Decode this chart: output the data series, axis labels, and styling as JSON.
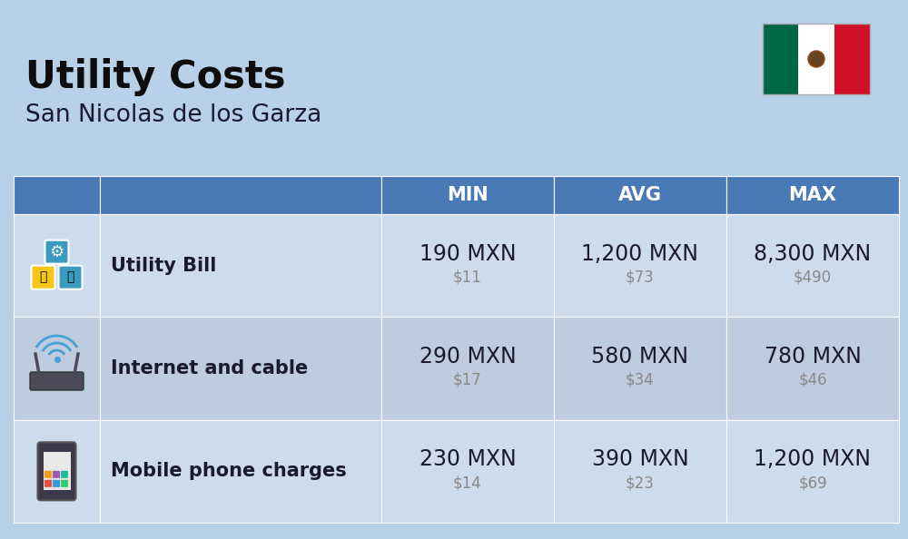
{
  "title": "Utility Costs",
  "subtitle": "San Nicolas de los Garza",
  "background_color": "#b8d0e8",
  "header_bg_color": "#4a7ab5",
  "header_text_color": "#ffffff",
  "row_bg_color_1": "#cddcec",
  "row_bg_color_2": "#beccdf",
  "col_headers": [
    "MIN",
    "AVG",
    "MAX"
  ],
  "rows": [
    {
      "icon_label": "utility",
      "name": "Utility Bill",
      "min_mxn": "190 MXN",
      "min_usd": "$11",
      "avg_mxn": "1,200 MXN",
      "avg_usd": "$73",
      "max_mxn": "8,300 MXN",
      "max_usd": "$490"
    },
    {
      "icon_label": "internet",
      "name": "Internet and cable",
      "min_mxn": "290 MXN",
      "min_usd": "$17",
      "avg_mxn": "580 MXN",
      "avg_usd": "$34",
      "max_mxn": "780 MXN",
      "max_usd": "$46"
    },
    {
      "icon_label": "mobile",
      "name": "Mobile phone charges",
      "min_mxn": "230 MXN",
      "min_usd": "$14",
      "avg_mxn": "390 MXN",
      "avg_usd": "$23",
      "max_mxn": "1,200 MXN",
      "max_usd": "$69"
    }
  ],
  "title_fontsize": 30,
  "subtitle_fontsize": 19,
  "header_fontsize": 15,
  "cell_mxn_fontsize": 17,
  "cell_usd_fontsize": 12,
  "name_fontsize": 15,
  "flag_colors": [
    "#006847",
    "#ffffff",
    "#ce1126"
  ],
  "mxn_text_color": "#1a1a2e",
  "usd_text_color": "#888888",
  "name_text_color": "#1a1a2e",
  "title_color": "#0d0d0d",
  "subtitle_color": "#1a1a2e"
}
